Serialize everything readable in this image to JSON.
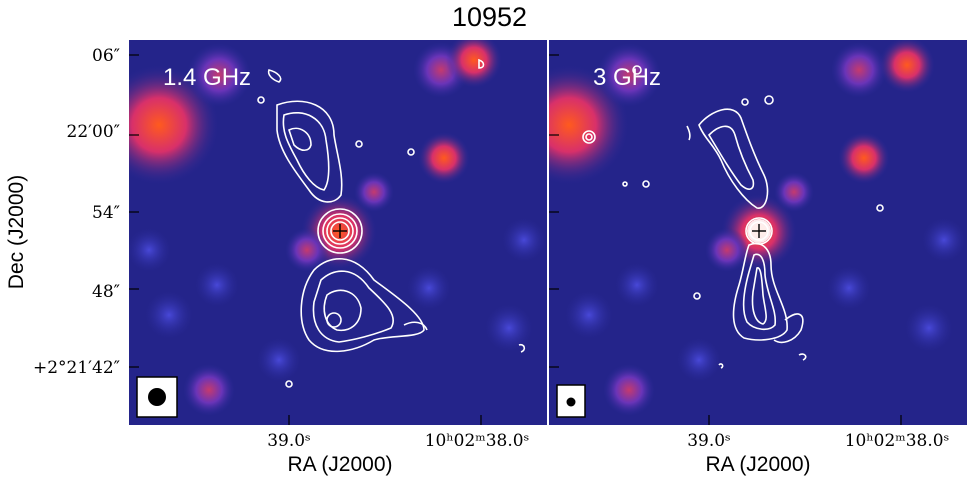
{
  "title": "10952",
  "panels": [
    {
      "label": "1.4 GHz"
    },
    {
      "label": "3 GHz"
    }
  ],
  "axes": {
    "ylabel": "Dec (J2000)",
    "xlabel": "RA (J2000)",
    "yticks": [
      "06″",
      "22′00″",
      "54″",
      "48″",
      "+2°21′42″"
    ],
    "xticks_left": [
      "39.0ˢ",
      "10ʰ02ᵐ38.0ˢ"
    ],
    "xticks_right": [
      "39.0ˢ",
      "10ʰ02ᵐ38.0ˢ"
    ]
  },
  "colors": {
    "background": "#1d1d7a",
    "source_hot": "#ff5a1e",
    "contour": "#ffffff"
  }
}
